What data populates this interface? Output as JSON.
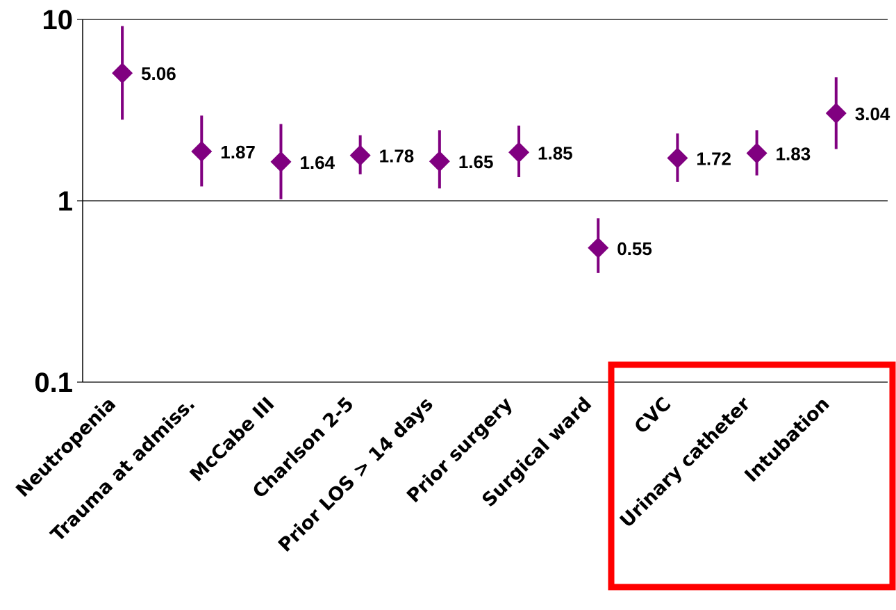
{
  "chart_data": {
    "type": "scatter",
    "title": "",
    "xlabel": "",
    "ylabel": "",
    "y_scale": "log",
    "ylim": [
      0.1,
      10
    ],
    "y_ticks": [
      "10",
      "1",
      "0.1"
    ],
    "gridlines": "horizontal",
    "legend": "none",
    "marker": "diamond with vertical error bar",
    "marker_color": "#800080",
    "categories": [
      "Neutropenia",
      "Trauma at admiss.",
      "McCabe III",
      "Charlson 2-5",
      "Prior LOS > 14 days",
      "Prior surgery",
      "Surgical ward",
      "CVC",
      "Urinary catheter",
      "Intubation"
    ],
    "values": [
      5.06,
      1.87,
      1.64,
      1.78,
      1.65,
      1.85,
      0.55,
      1.72,
      1.83,
      3.04
    ],
    "value_labels": [
      "5.06",
      "1.87",
      "1.64",
      "1.78",
      "1.65",
      "1.85",
      "0.55",
      "1.72",
      "1.83",
      "3.04"
    ],
    "error_low": [
      2.8,
      1.2,
      1.02,
      1.4,
      1.17,
      1.35,
      0.4,
      1.27,
      1.38,
      1.93
    ],
    "error_high": [
      9.2,
      2.95,
      2.65,
      2.3,
      2.45,
      2.6,
      0.8,
      2.35,
      2.45,
      4.8
    ],
    "highlight": {
      "color": "#ff0000",
      "categories": [
        "CVC",
        "Urinary catheter",
        "Intubation"
      ]
    }
  }
}
